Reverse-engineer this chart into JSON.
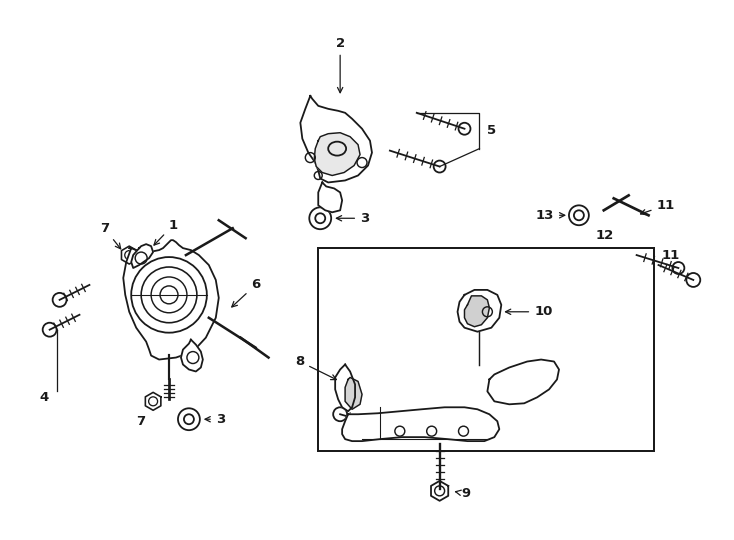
{
  "background_color": "#ffffff",
  "line_color": "#1a1a1a",
  "figsize": [
    7.34,
    5.4
  ],
  "dpi": 100,
  "lw_part": 1.3,
  "lw_label": 0.8,
  "label_fontsize": 9.5,
  "label_fontweight": "bold"
}
